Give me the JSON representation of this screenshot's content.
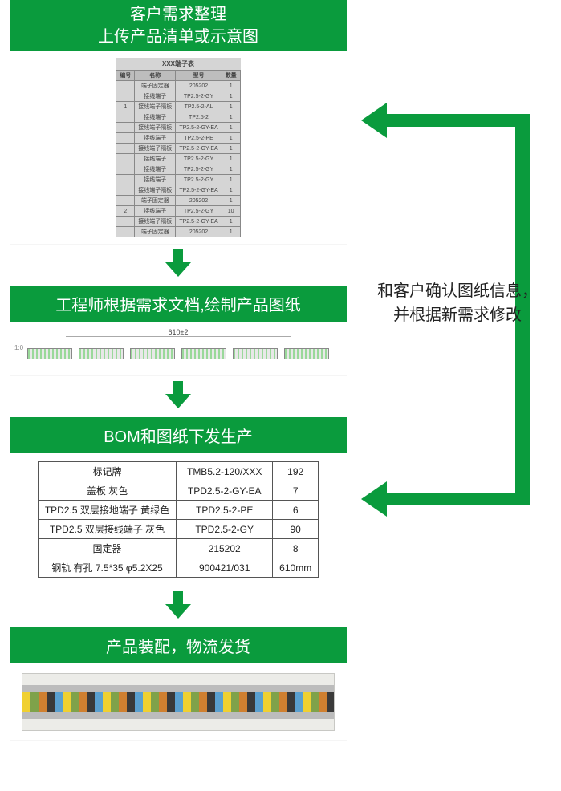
{
  "colors": {
    "brand": "#0a9b3d",
    "arrow": "#0a9b3d",
    "page_bg": "#ffffff",
    "table_hdr": "#bdbdbd",
    "table_body": "#d5d5d5",
    "text_dark": "#222222"
  },
  "step1": {
    "title_l1": "客户需求整理",
    "title_l2": "上传产品清单或示意图",
    "table_caption": "XXX端子表",
    "headers": [
      "编号",
      "名称",
      "型号",
      "数量"
    ],
    "rows": [
      [
        "",
        "端子固定器",
        "205202",
        "1"
      ],
      [
        "",
        "接线端子",
        "TP2.5-2-GY",
        "1"
      ],
      [
        "1",
        "接线端子隔板",
        "TP2.5-2-AL",
        "1"
      ],
      [
        "",
        "接线端子",
        "TP2.5-2",
        "1"
      ],
      [
        "",
        "接线端子隔板",
        "TP2.5-2-GY-EA",
        "1"
      ],
      [
        "",
        "接线端子",
        "TP2.5-2-PE",
        "1"
      ],
      [
        "",
        "接线端子隔板",
        "TP2.5-2-GY-EA",
        "1"
      ],
      [
        "",
        "接线端子",
        "TP2.5-2-GY",
        "1"
      ],
      [
        "",
        "接线端子",
        "TP2.5-2-GY",
        "1"
      ],
      [
        "",
        "接线端子",
        "TP2.5-2-GY",
        "1"
      ],
      [
        "",
        "接线端子隔板",
        "TP2.5-2-GY-EA",
        "1"
      ],
      [
        "",
        "端子固定器",
        "205202",
        "1"
      ],
      [
        "2",
        "接线端子",
        "TP2.5-2-GY",
        "10"
      ],
      [
        "",
        "接线端子隔板",
        "TP2.5-2-GY-EA",
        "1"
      ],
      [
        "",
        "端子固定器",
        "205202",
        "1"
      ]
    ]
  },
  "step2": {
    "title": "工程师根据需求文档,绘制产品图纸",
    "dimension_label": "610±2",
    "block_count": 6
  },
  "step3": {
    "title": "BOM和图纸下发生产",
    "rows": [
      [
        "标记牌",
        "TMB5.2-120/XXX",
        "192"
      ],
      [
        "盖板  灰色",
        "TPD2.5-2-GY-EA",
        "7"
      ],
      [
        "TPD2.5 双层接地端子 黄绿色",
        "TPD2.5-2-PE",
        "6"
      ],
      [
        "TPD2.5 双层接线端子 灰色",
        "TPD2.5-2-GY",
        "90"
      ],
      [
        "固定器",
        "215202",
        "8"
      ],
      [
        "钢轨 有孔 7.5*35 φ5.2X25",
        "900421/031",
        "610mm"
      ]
    ]
  },
  "step4": {
    "title": "产品装配，物流发货"
  },
  "feedback": {
    "line1": "和客户确认图纸信息，",
    "line2": "并根据新需求修改"
  }
}
